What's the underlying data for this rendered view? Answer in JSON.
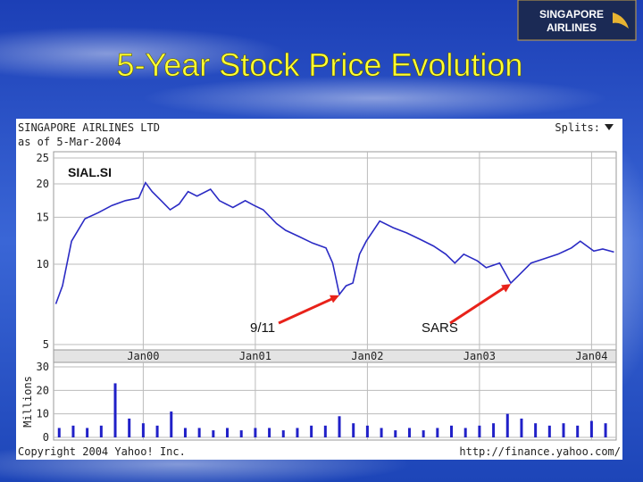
{
  "title": "5-Year Stock Price Evolution",
  "logo": [
    "SINGAPORE",
    "AIRLINES"
  ],
  "chart_data": [
    {
      "type": "line",
      "title": "SINGAPORE AIRLINES LTD",
      "subtitle": "as of 5-Mar-2004",
      "splits_label": "Splits:",
      "log_scale": true,
      "grid": true,
      "x": [
        1999.22,
        1999.28,
        1999.36,
        1999.48,
        1999.6,
        1999.72,
        1999.84,
        1999.96,
        2000.02,
        2000.08,
        2000.16,
        2000.24,
        2000.32,
        2000.4,
        2000.48,
        2000.6,
        2000.68,
        2000.8,
        2000.91,
        2000.99,
        2001.07,
        2001.19,
        2001.27,
        2001.39,
        2001.51,
        2001.63,
        2001.69,
        2001.75,
        2001.81,
        2001.87,
        2001.93,
        2001.99,
        2002.11,
        2002.23,
        2002.35,
        2002.47,
        2002.59,
        2002.7,
        2002.78,
        2002.86,
        2002.98,
        2003.06,
        2003.18,
        2003.28,
        2003.34,
        2003.46,
        2003.58,
        2003.7,
        2003.82,
        2003.9,
        2004.02,
        2004.1,
        2004.2
      ],
      "series": [
        {
          "name": "SIAL.SI",
          "color": "#2b2bc4",
          "values": [
            7.1,
            8.3,
            12.2,
            14.8,
            15.6,
            16.6,
            17.3,
            17.7,
            20.2,
            18.7,
            17.3,
            16.0,
            16.8,
            18.7,
            18.0,
            19.1,
            17.3,
            16.3,
            17.3,
            16.6,
            16.0,
            14.2,
            13.4,
            12.7,
            12.0,
            11.5,
            10.1,
            7.7,
            8.3,
            8.5,
            10.9,
            12.2,
            14.5,
            13.7,
            13.1,
            12.4,
            11.7,
            10.9,
            10.1,
            10.9,
            10.3,
            9.7,
            10.1,
            8.5,
            9.0,
            10.1,
            10.5,
            10.9,
            11.5,
            12.2,
            11.2,
            11.4,
            11.1
          ]
        }
      ],
      "xlim": [
        1999.2,
        2004.22
      ],
      "xticks": [
        {
          "value": 2000,
          "label": "Jan00"
        },
        {
          "value": 2001,
          "label": "Jan01"
        },
        {
          "value": 2002,
          "label": "Jan02"
        },
        {
          "value": 2003,
          "label": "Jan03"
        },
        {
          "value": 2004,
          "label": "Jan04"
        }
      ],
      "ylim": [
        5,
        25
      ],
      "yticks": [
        5,
        10,
        15,
        20,
        25
      ],
      "annotations": [
        {
          "text": "9/11",
          "x": 2001.75,
          "y": 7.7,
          "color": "#e8221a"
        },
        {
          "text": "SARS",
          "x": 2003.28,
          "y": 8.5,
          "color": "#e8221a"
        }
      ]
    },
    {
      "type": "bar",
      "ylabel": "Millions",
      "color": "#2020c8",
      "grid": true,
      "x": [
        1999.25,
        1999.375,
        1999.5,
        1999.625,
        1999.75,
        1999.875,
        2000.0,
        2000.125,
        2000.25,
        2000.375,
        2000.5,
        2000.625,
        2000.75,
        2000.875,
        2001.0,
        2001.125,
        2001.25,
        2001.375,
        2001.5,
        2001.625,
        2001.75,
        2001.875,
        2002.0,
        2002.125,
        2002.25,
        2002.375,
        2002.5,
        2002.625,
        2002.75,
        2002.875,
        2003.0,
        2003.125,
        2003.25,
        2003.375,
        2003.5,
        2003.625,
        2003.75,
        2003.875,
        2004.0,
        2004.125
      ],
      "values": [
        4,
        5,
        4,
        5,
        23,
        8,
        6,
        5,
        11,
        4,
        4,
        3,
        4,
        3,
        4,
        4,
        3,
        4,
        5,
        5,
        9,
        6,
        5,
        4,
        3,
        4,
        3,
        4,
        5,
        4,
        5,
        6,
        10,
        8,
        6,
        5,
        6,
        5,
        7,
        6
      ],
      "xlim": [
        1999.2,
        2004.22
      ],
      "ylim": [
        0,
        30
      ],
      "yticks": [
        0,
        10,
        20,
        30
      ],
      "footer_left": "Copyright 2004 Yahoo! Inc.",
      "footer_right": "http://finance.yahoo.com/"
    }
  ]
}
